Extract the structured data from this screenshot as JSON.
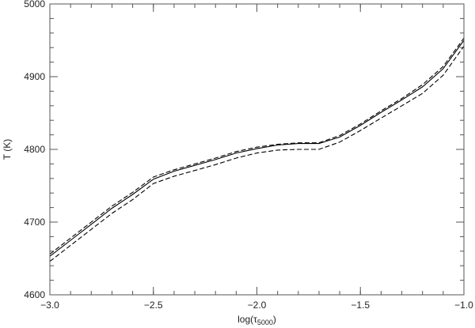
{
  "chart_data": {
    "type": "line",
    "xlabel_main": "log(τ",
    "xlabel_sub": "5000",
    "xlabel_close": ")",
    "ylabel": "T (K)",
    "xlim": [
      -3.0,
      -1.0
    ],
    "ylim": [
      4600,
      5000
    ],
    "x_ticks": [
      -3.0,
      -2.5,
      -2.0,
      -1.5,
      -1.0
    ],
    "x_tick_labels": [
      "−3.0",
      "−2.5",
      "−2.0",
      "−1.5",
      "−1.0"
    ],
    "y_ticks": [
      4600,
      4700,
      4800,
      4900,
      5000
    ],
    "y_tick_labels": [
      "4600",
      "4700",
      "4800",
      "4900",
      "5000"
    ],
    "x_minor_step": 0.1,
    "y_minor_step": 20,
    "grid": false,
    "colors": {
      "line": "#000000",
      "axis": "#555555",
      "background": "#ffffff"
    },
    "series": [
      {
        "style": "solid",
        "x": [
          -3.0,
          -2.9,
          -2.8,
          -2.7,
          -2.6,
          -2.5,
          -2.4,
          -2.3,
          -2.2,
          -2.1,
          -2.0,
          -1.9,
          -1.8,
          -1.7,
          -1.6,
          -1.5,
          -1.4,
          -1.3,
          -1.2,
          -1.1,
          -1.0
        ],
        "y": [
          4653,
          4675,
          4697,
          4719,
          4738,
          4759,
          4770,
          4778,
          4786,
          4795,
          4801,
          4806,
          4808,
          4808,
          4817,
          4833,
          4851,
          4868,
          4886,
          4911,
          4950
        ]
      },
      {
        "style": "dashed",
        "x": [
          -3.0,
          -2.9,
          -2.8,
          -2.7,
          -2.6,
          -2.5,
          -2.4,
          -2.3,
          -2.2,
          -2.1,
          -2.0,
          -1.9,
          -1.8,
          -1.7,
          -1.6,
          -1.5,
          -1.4,
          -1.3,
          -1.2,
          -1.1,
          -1.0
        ],
        "y": [
          4656,
          4678,
          4700,
          4722,
          4741,
          4762,
          4772,
          4780,
          4788,
          4797,
          4803,
          4807,
          4809,
          4809,
          4819,
          4835,
          4853,
          4870,
          4889,
          4914,
          4953
        ]
      },
      {
        "style": "dashed",
        "x": [
          -3.0,
          -2.9,
          -2.8,
          -2.7,
          -2.6,
          -2.5,
          -2.4,
          -2.3,
          -2.2,
          -2.1,
          -2.0,
          -1.9,
          -1.8,
          -1.7,
          -1.6,
          -1.5,
          -1.4,
          -1.3,
          -1.2,
          -1.1,
          -1.0
        ],
        "y": [
          4646,
          4668,
          4690,
          4712,
          4731,
          4753,
          4763,
          4771,
          4779,
          4788,
          4795,
          4799,
          4800,
          4800,
          4810,
          4826,
          4843,
          4860,
          4877,
          4902,
          4942
        ]
      }
    ]
  }
}
